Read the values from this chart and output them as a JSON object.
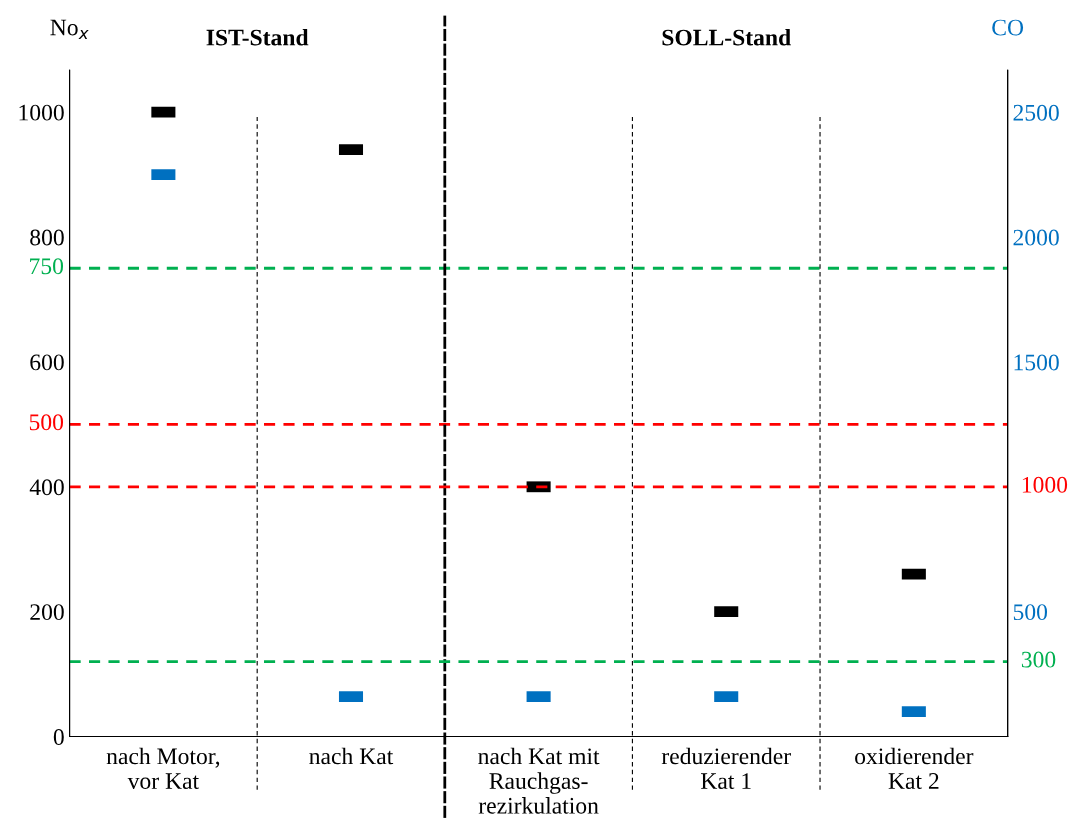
{
  "chart_data": {
    "type": "scatter",
    "categories": [
      "nach Motor,\nvor Kat",
      "nach Kat",
      "nach Kat mit\nRauchgas-\nrezirkulation",
      "reduzierender\nKat 1",
      "oxidierender\nKat 2"
    ],
    "ylabel": "No$_{x}$",
    "y2label": "CO",
    "series": [
      {
        "color": "#000000",
        "values": [
          1000,
          940,
          400,
          200,
          260
        ]
      },
      {
        "color": "#0070c0",
        "axis": "y2",
        "values": [
          2250,
          160,
          160,
          160,
          100
        ]
      }
    ],
    "ylim": [
      0,
      1067
    ],
    "yticks": [
      0,
      200,
      400,
      600,
      800,
      1000
    ],
    "y2lim": [
      0,
      2668
    ],
    "y2ticks": [
      500,
      1500,
      2000,
      2500
    ],
    "ref_lines": [
      {
        "axis": "y",
        "value": 750,
        "label": "750",
        "color": "#00b050",
        "line_style": "dashed"
      },
      {
        "axis": "y",
        "value": 500,
        "label": "500",
        "color": "#ff0000",
        "line_style": "dashed"
      },
      {
        "axis": "y2",
        "value": 1000,
        "label": "1000",
        "color": "#ff0000",
        "line_style": "dashed"
      },
      {
        "axis": "y2",
        "value": 300,
        "label": "300",
        "color": "#00b050",
        "line_style": "dashed"
      }
    ],
    "annotations": [
      "IST-Stand",
      "SOLL-Stand"
    ],
    "grid": false,
    "legend": false
  }
}
